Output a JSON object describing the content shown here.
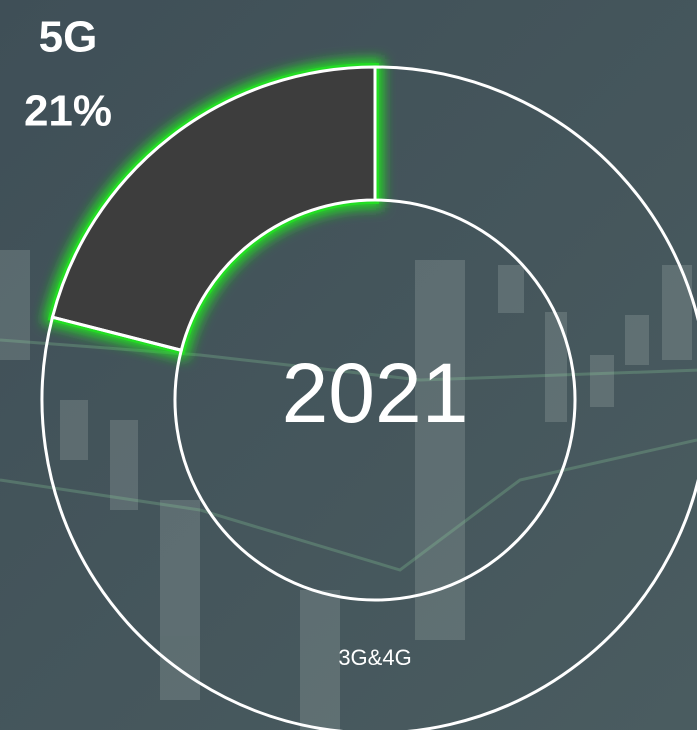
{
  "chart_data": {
    "type": "donut",
    "center_label": "2021",
    "categories": [
      "5G",
      "3G&4G"
    ],
    "values": [
      21,
      79
    ],
    "value_labels": [
      "21%",
      null
    ],
    "colors": [
      "#3d3d3d",
      "transparent"
    ],
    "highlight_color": "#22e022"
  }
}
